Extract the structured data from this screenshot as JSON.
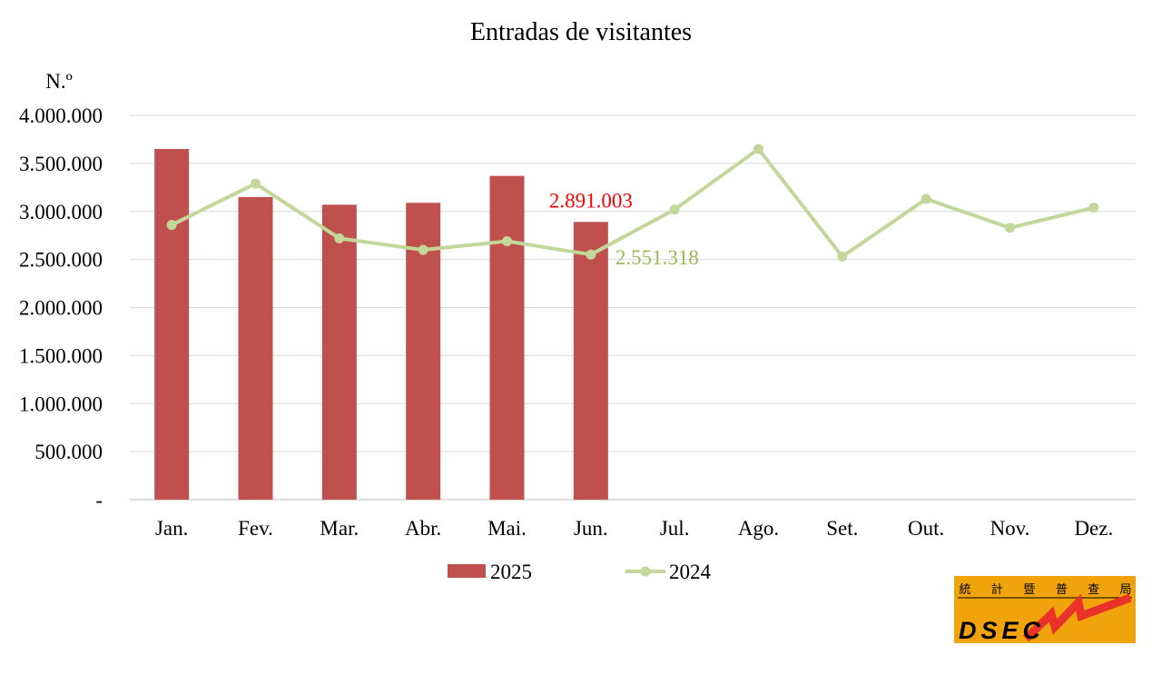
{
  "chart_data": {
    "type": "bar",
    "title": "Entradas de visitantes",
    "ylabel": "N.º",
    "xlabel": "",
    "categories": [
      "Jan.",
      "Fev.",
      "Mar.",
      "Abr.",
      "Mai.",
      "Jun.",
      "Jul.",
      "Ago.",
      "Set.",
      "Out.",
      "Nov.",
      "Dez."
    ],
    "ylim": [
      0,
      4000000
    ],
    "yticks": [
      0,
      500000,
      1000000,
      1500000,
      2000000,
      2500000,
      3000000,
      3500000,
      4000000
    ],
    "ytick_labels": [
      "-",
      "500.000",
      "1.000.000",
      "1.500.000",
      "2.000.000",
      "2.500.000",
      "3.000.000",
      "3.500.000",
      "4.000.000"
    ],
    "grid": true,
    "legend_position": "bottom",
    "series": [
      {
        "name": "2025",
        "type": "bar",
        "color": "#c0504d",
        "values": [
          3650000,
          3150000,
          3070000,
          3090000,
          3370000,
          2891003,
          null,
          null,
          null,
          null,
          null,
          null
        ]
      },
      {
        "name": "2024",
        "type": "line",
        "color": "#c4d79b",
        "values": [
          2860000,
          3290000,
          2720000,
          2600000,
          2690000,
          2551318,
          3020000,
          3650000,
          2530000,
          3130000,
          2830000,
          3040000
        ]
      }
    ],
    "annotations": [
      {
        "series": "2025",
        "category": "Jun.",
        "text": "2.891.003",
        "color": "#ff0000"
      },
      {
        "series": "2024",
        "category": "Jun.",
        "text": "2.551.318",
        "color": "#9bbb59"
      }
    ]
  },
  "logo": {
    "chars": [
      "統",
      "計",
      "暨",
      "普",
      "查",
      "局"
    ],
    "text": "DSEC",
    "bg_color": "#f0a30a",
    "accent_color": "#e8322a"
  }
}
